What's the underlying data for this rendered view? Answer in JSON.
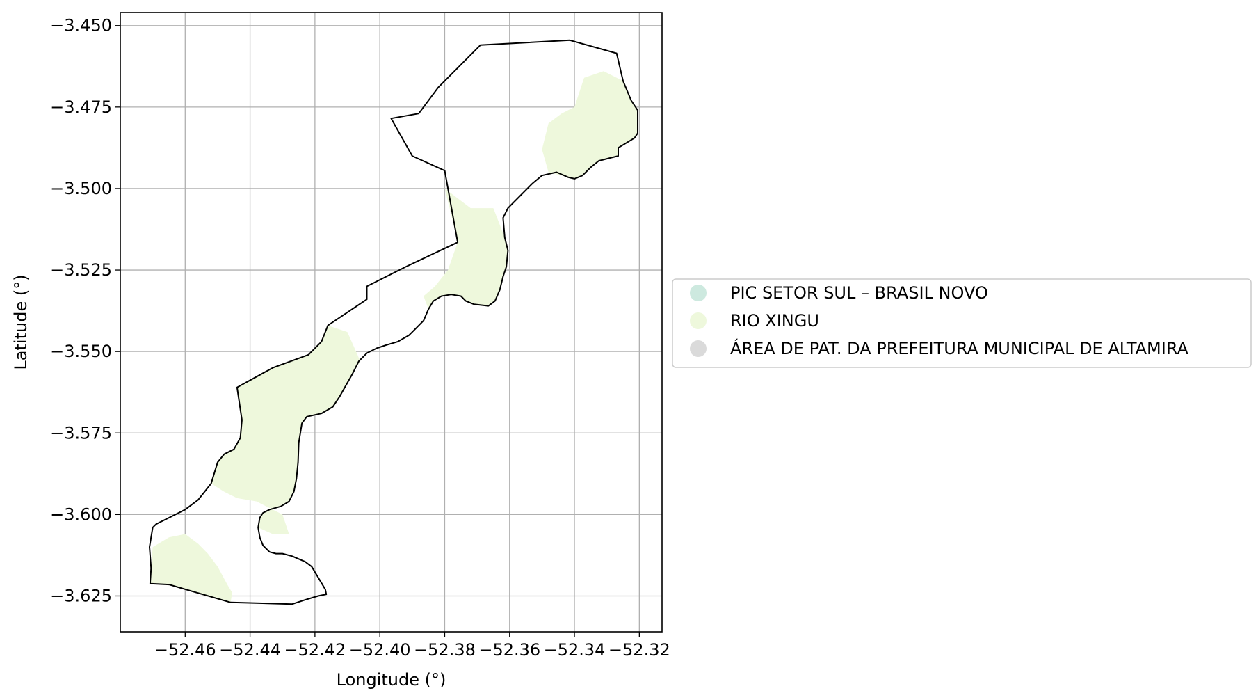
{
  "chart_data": {
    "type": "map",
    "xlabel": "Longitude (°)",
    "ylabel": "Latitude (°)",
    "xlim": [
      -52.48,
      -52.313
    ],
    "ylim": [
      -3.636,
      -3.446
    ],
    "x_ticks": [
      {
        "value": -52.46,
        "label": "−52.46"
      },
      {
        "value": -52.44,
        "label": "−52.44"
      },
      {
        "value": -52.42,
        "label": "−52.42"
      },
      {
        "value": -52.4,
        "label": "−52.40"
      },
      {
        "value": -52.38,
        "label": "−52.38"
      },
      {
        "value": -52.36,
        "label": "−52.36"
      },
      {
        "value": -52.34,
        "label": "−52.34"
      },
      {
        "value": -52.32,
        "label": "−52.32"
      }
    ],
    "y_ticks": [
      {
        "value": -3.45,
        "label": "−3.450"
      },
      {
        "value": -3.475,
        "label": "−3.475"
      },
      {
        "value": -3.5,
        "label": "−3.500"
      },
      {
        "value": -3.525,
        "label": "−3.525"
      },
      {
        "value": -3.55,
        "label": "−3.550"
      },
      {
        "value": -3.575,
        "label": "−3.575"
      },
      {
        "value": -3.6,
        "label": "−3.600"
      },
      {
        "value": -3.625,
        "label": "−3.625"
      }
    ],
    "grid": true,
    "legend_position": "right",
    "legend": [
      {
        "label": "PIC SETOR SUL – BRASIL NOVO",
        "color": "#cde9df"
      },
      {
        "label": "RIO XINGU",
        "color": "#eef8dc"
      },
      {
        "label": "ÁREA DE PAT. DA PREFEITURA MUNICIPAL DE ALTAMIRA",
        "color": "#dadada"
      }
    ],
    "boundary_color": "#000000",
    "river_color": "#eef8dc",
    "boundary": [
      [
        -52.3414,
        -3.4545
      ],
      [
        -52.327,
        -3.4585
      ],
      [
        -52.325,
        -3.467
      ],
      [
        -52.3225,
        -3.473
      ],
      [
        -52.3205,
        -3.476
      ],
      [
        -52.3205,
        -3.483
      ],
      [
        -52.3215,
        -3.4845
      ],
      [
        -52.3265,
        -3.4875
      ],
      [
        -52.3265,
        -3.49
      ],
      [
        -52.3285,
        -3.4905
      ],
      [
        -52.3325,
        -3.4915
      ],
      [
        -52.335,
        -3.4935
      ],
      [
        -52.3375,
        -3.496
      ],
      [
        -52.34,
        -3.497
      ],
      [
        -52.342,
        -3.4965
      ],
      [
        -52.3455,
        -3.495
      ],
      [
        -52.35,
        -3.496
      ],
      [
        -52.353,
        -3.4985
      ],
      [
        -52.3545,
        -3.5
      ],
      [
        -52.3575,
        -3.503
      ],
      [
        -52.3605,
        -3.506
      ],
      [
        -52.362,
        -3.509
      ],
      [
        -52.3615,
        -3.515
      ],
      [
        -52.3605,
        -3.519
      ],
      [
        -52.361,
        -3.524
      ],
      [
        -52.362,
        -3.527
      ],
      [
        -52.363,
        -3.531
      ],
      [
        -52.3645,
        -3.5345
      ],
      [
        -52.3665,
        -3.536
      ],
      [
        -52.371,
        -3.5355
      ],
      [
        -52.3735,
        -3.5345
      ],
      [
        -52.375,
        -3.533
      ],
      [
        -52.378,
        -3.5325
      ],
      [
        -52.381,
        -3.533
      ],
      [
        -52.3835,
        -3.5345
      ],
      [
        -52.385,
        -3.537
      ],
      [
        -52.3865,
        -3.5405
      ],
      [
        -52.389,
        -3.543
      ],
      [
        -52.391,
        -3.545
      ],
      [
        -52.3945,
        -3.547
      ],
      [
        -52.398,
        -3.548
      ],
      [
        -52.401,
        -3.549
      ],
      [
        -52.404,
        -3.5505
      ],
      [
        -52.4065,
        -3.553
      ],
      [
        -52.4085,
        -3.557
      ],
      [
        -52.4105,
        -3.5605
      ],
      [
        -52.4125,
        -3.564
      ],
      [
        -52.4145,
        -3.567
      ],
      [
        -52.418,
        -3.569
      ],
      [
        -52.4225,
        -3.57
      ],
      [
        -52.424,
        -3.572
      ],
      [
        -52.425,
        -3.578
      ],
      [
        -52.4252,
        -3.584
      ],
      [
        -52.4257,
        -3.589
      ],
      [
        -52.4265,
        -3.593
      ],
      [
        -52.428,
        -3.596
      ],
      [
        -52.4305,
        -3.5975
      ],
      [
        -52.434,
        -3.5985
      ],
      [
        -52.436,
        -3.5995
      ],
      [
        -52.437,
        -3.601
      ],
      [
        -52.4375,
        -3.604
      ],
      [
        -52.437,
        -3.607
      ],
      [
        -52.436,
        -3.6095
      ],
      [
        -52.434,
        -3.6115
      ],
      [
        -52.432,
        -3.612
      ],
      [
        -52.43,
        -3.612
      ],
      [
        -52.427,
        -3.6128
      ],
      [
        -52.423,
        -3.6145
      ],
      [
        -52.421,
        -3.616
      ],
      [
        -52.4195,
        -3.6185
      ],
      [
        -52.418,
        -3.621
      ],
      [
        -52.4168,
        -3.623
      ],
      [
        -52.4165,
        -3.6245
      ],
      [
        -52.419,
        -3.625
      ],
      [
        -52.423,
        -3.6262
      ],
      [
        -52.427,
        -3.6275
      ],
      [
        -52.446,
        -3.627
      ],
      [
        -52.465,
        -3.6215
      ],
      [
        -52.4708,
        -3.6212
      ],
      [
        -52.4705,
        -3.6165
      ],
      [
        -52.471,
        -3.61
      ],
      [
        -52.47,
        -3.604
      ],
      [
        -52.469,
        -3.603
      ],
      [
        -52.46,
        -3.5985
      ],
      [
        -52.456,
        -3.5955
      ],
      [
        -52.452,
        -3.5905
      ],
      [
        -52.45,
        -3.584
      ],
      [
        -52.448,
        -3.5815
      ],
      [
        -52.445,
        -3.58
      ],
      [
        -52.443,
        -3.5765
      ],
      [
        -52.4425,
        -3.571
      ],
      [
        -52.444,
        -3.561
      ],
      [
        -52.433,
        -3.555
      ],
      [
        -52.422,
        -3.551
      ],
      [
        -52.418,
        -3.547
      ],
      [
        -52.416,
        -3.542
      ],
      [
        -52.404,
        -3.534
      ],
      [
        -52.404,
        -3.53
      ],
      [
        -52.392,
        -3.524
      ],
      [
        -52.376,
        -3.5165
      ],
      [
        -52.38,
        -3.4945
      ],
      [
        -52.39,
        -3.49
      ],
      [
        -52.3965,
        -3.4785
      ],
      [
        -52.388,
        -3.477
      ],
      [
        -52.382,
        -3.469
      ],
      [
        -52.369,
        -3.456
      ],
      [
        -52.3414,
        -3.4545
      ]
    ],
    "river_polygons": [
      [
        [
          -52.4708,
          -3.6212
        ],
        [
          -52.465,
          -3.6215
        ],
        [
          -52.446,
          -3.627
        ],
        [
          -52.4455,
          -3.624
        ],
        [
          -52.447,
          -3.6215
        ],
        [
          -52.45,
          -3.616
        ],
        [
          -52.453,
          -3.612
        ],
        [
          -52.456,
          -3.609
        ],
        [
          -52.46,
          -3.606
        ],
        [
          -52.465,
          -3.607
        ],
        [
          -52.47,
          -3.61
        ],
        [
          -52.4705,
          -3.6165
        ]
      ],
      [
        [
          -52.452,
          -3.5905
        ],
        [
          -52.45,
          -3.584
        ],
        [
          -52.448,
          -3.5815
        ],
        [
          -52.445,
          -3.58
        ],
        [
          -52.443,
          -3.5765
        ],
        [
          -52.4425,
          -3.571
        ],
        [
          -52.444,
          -3.561
        ],
        [
          -52.433,
          -3.555
        ],
        [
          -52.422,
          -3.551
        ],
        [
          -52.418,
          -3.547
        ],
        [
          -52.416,
          -3.542
        ],
        [
          -52.41,
          -3.544
        ],
        [
          -52.406,
          -3.553
        ],
        [
          -52.4085,
          -3.557
        ],
        [
          -52.4105,
          -3.5605
        ],
        [
          -52.4125,
          -3.564
        ],
        [
          -52.4145,
          -3.567
        ],
        [
          -52.418,
          -3.569
        ],
        [
          -52.4225,
          -3.57
        ],
        [
          -52.424,
          -3.572
        ],
        [
          -52.425,
          -3.578
        ],
        [
          -52.4252,
          -3.584
        ],
        [
          -52.4257,
          -3.589
        ],
        [
          -52.4265,
          -3.593
        ],
        [
          -52.428,
          -3.596
        ],
        [
          -52.4305,
          -3.5975
        ],
        [
          -52.434,
          -3.5985
        ],
        [
          -52.436,
          -3.5995
        ],
        [
          -52.437,
          -3.601
        ],
        [
          -52.4375,
          -3.604
        ],
        [
          -52.433,
          -3.606
        ],
        [
          -52.428,
          -3.606
        ],
        [
          -52.43,
          -3.6
        ],
        [
          -52.438,
          -3.596
        ],
        [
          -52.444,
          -3.595
        ],
        [
          -52.448,
          -3.593
        ]
      ],
      [
        [
          -52.372,
          -3.506
        ],
        [
          -52.365,
          -3.506
        ],
        [
          -52.3615,
          -3.515
        ],
        [
          -52.3605,
          -3.519
        ],
        [
          -52.361,
          -3.524
        ],
        [
          -52.362,
          -3.527
        ],
        [
          -52.363,
          -3.531
        ],
        [
          -52.3645,
          -3.5345
        ],
        [
          -52.3665,
          -3.536
        ],
        [
          -52.371,
          -3.5355
        ],
        [
          -52.3735,
          -3.5345
        ],
        [
          -52.375,
          -3.533
        ],
        [
          -52.378,
          -3.5325
        ],
        [
          -52.381,
          -3.533
        ],
        [
          -52.3835,
          -3.5345
        ],
        [
          -52.385,
          -3.537
        ],
        [
          -52.3865,
          -3.533
        ],
        [
          -52.383,
          -3.53
        ],
        [
          -52.379,
          -3.525
        ],
        [
          -52.376,
          -3.5165
        ],
        [
          -52.378,
          -3.508
        ],
        [
          -52.38,
          -3.5
        ]
      ],
      [
        [
          -52.348,
          -3.495
        ],
        [
          -52.342,
          -3.4965
        ],
        [
          -52.34,
          -3.497
        ],
        [
          -52.3375,
          -3.496
        ],
        [
          -52.335,
          -3.4935
        ],
        [
          -52.3325,
          -3.4915
        ],
        [
          -52.3285,
          -3.4905
        ],
        [
          -52.3265,
          -3.49
        ],
        [
          -52.3265,
          -3.4875
        ],
        [
          -52.3215,
          -3.4845
        ],
        [
          -52.3205,
          -3.483
        ],
        [
          -52.3205,
          -3.476
        ],
        [
          -52.3225,
          -3.473
        ],
        [
          -52.325,
          -3.467
        ],
        [
          -52.331,
          -3.464
        ],
        [
          -52.337,
          -3.466
        ],
        [
          -52.34,
          -3.475
        ],
        [
          -52.344,
          -3.477
        ],
        [
          -52.348,
          -3.48
        ],
        [
          -52.35,
          -3.488
        ]
      ]
    ]
  }
}
